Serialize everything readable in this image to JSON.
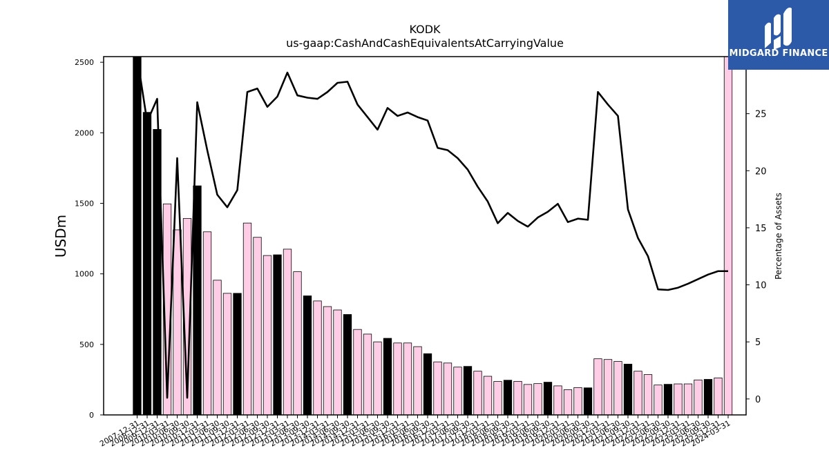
{
  "chart_data": {
    "type": "bar",
    "title": "KODK",
    "subtitle": "us-gaap:CashAndCashEquivalentsAtCarryingValue",
    "ylabel": "USDm",
    "ylabel_right": "Percentage of Assets",
    "ylim": [
      0,
      2540
    ],
    "ylim_right": [
      -1.4,
      30
    ],
    "yticks": [
      "0",
      "500",
      "1000",
      "1500",
      "2000",
      "2500"
    ],
    "yticks_right": [
      "0",
      "5",
      "10",
      "15",
      "20",
      "25"
    ],
    "categories": [
      "2007-12-31",
      "2008-12-31",
      "2009-12-31",
      "2010-03-31",
      "2010-06-30",
      "2010-09-30",
      "2010-12-31",
      "2011-03-31",
      "2011-06-30",
      "2011-09-30",
      "2011-12-31",
      "2012-03-31",
      "2012-06-30",
      "2012-09-30",
      "2012-12-31",
      "2013-03-31",
      "2013-06-30",
      "2013-09-30",
      "2013-12-31",
      "2014-03-31",
      "2014-06-30",
      "2014-09-30",
      "2014-12-31",
      "2015-03-31",
      "2015-06-30",
      "2015-09-30",
      "2015-12-31",
      "2016-03-31",
      "2016-06-30",
      "2016-09-30",
      "2016-12-31",
      "2017-03-31",
      "2017-06-30",
      "2017-09-30",
      "2017-12-31",
      "2018-03-31",
      "2018-06-30",
      "2018-09-30",
      "2018-12-31",
      "2019-03-31",
      "2019-06-30",
      "2019-09-30",
      "2019-12-31",
      "2020-03-31",
      "2020-06-30",
      "2020-09-30",
      "2020-12-31",
      "2021-03-31",
      "2021-06-30",
      "2021-09-30",
      "2021-12-31",
      "2022-03-31",
      "2022-06-30",
      "2022-09-30",
      "2022-12-31",
      "2023-03-31",
      "2023-06-30",
      "2023-09-30",
      "2023-12-31",
      "2024-03-31"
    ],
    "series": [
      {
        "values": [
          2540,
          2145,
          2024,
          1496,
          1312,
          1393,
          1624,
          1298,
          955,
          862,
          862,
          1360,
          1259,
          1130,
          1135,
          1175,
          1015,
          844,
          808,
          768,
          744,
          712,
          606,
          573,
          518,
          543,
          510,
          510,
          484,
          434,
          376,
          368,
          339,
          344,
          310,
          274,
          237,
          246,
          238,
          216,
          222,
          232,
          206,
          179,
          194,
          192,
          398,
          393,
          379,
          360,
          310,
          286,
          212,
          217,
          220,
          220,
          248,
          252,
          262,
          2540
        ],
        "colors": [
          "#000000",
          "#000000",
          "#000000",
          "#ffcce6",
          "#ffcce6",
          "#ffcce6",
          "#000000",
          "#ffcce6",
          "#ffcce6",
          "#ffcce6",
          "#000000",
          "#ffcce6",
          "#ffcce6",
          "#ffcce6",
          "#000000",
          "#ffcce6",
          "#ffcce6",
          "#000000",
          "#ffcce6",
          "#ffcce6",
          "#ffcce6",
          "#000000",
          "#ffcce6",
          "#ffcce6",
          "#ffcce6",
          "#000000",
          "#ffcce6",
          "#ffcce6",
          "#ffcce6",
          "#000000",
          "#ffcce6",
          "#ffcce6",
          "#ffcce6",
          "#000000",
          "#ffcce6",
          "#ffcce6",
          "#ffcce6",
          "#000000",
          "#ffcce6",
          "#ffcce6",
          "#ffcce6",
          "#000000",
          "#ffcce6",
          "#ffcce6",
          "#ffcce6",
          "#000000",
          "#ffcce6",
          "#ffcce6",
          "#ffcce6",
          "#000000",
          "#ffcce6",
          "#ffcce6",
          "#ffcce6",
          "#000000",
          "#ffcce6",
          "#ffcce6",
          "#ffcce6",
          "#000000",
          "#ffcce6",
          "#ffcce6"
        ]
      },
      {
        "axis": "right",
        "type": "line",
        "values": [
          30,
          24.3,
          26.3,
          0.1,
          21.1,
          0.1,
          26,
          21.8,
          17.9,
          16.8,
          18.3,
          26.9,
          27.2,
          25.6,
          26.5,
          28.6,
          26.6,
          26.4,
          26.3,
          26.9,
          27.7,
          27.8,
          25.8,
          24.7,
          23.6,
          25.5,
          24.8,
          25.1,
          24.7,
          24.4,
          22,
          21.8,
          21.1,
          20.1,
          18.6,
          17.3,
          15.4,
          16.3,
          15.6,
          15.1,
          15.9,
          16.4,
          17.1,
          15.5,
          15.8,
          15.7,
          26.9,
          25.8,
          24.8,
          16.6,
          14.1,
          12.5,
          9.6,
          9.55,
          9.75,
          10.1,
          10.5,
          10.9,
          11.2,
          11.2
        ]
      }
    ],
    "bar_edge_color": "#000000"
  },
  "logo": {
    "text": "MIDGARD FINANCE",
    "background": "#2c5aa8"
  }
}
